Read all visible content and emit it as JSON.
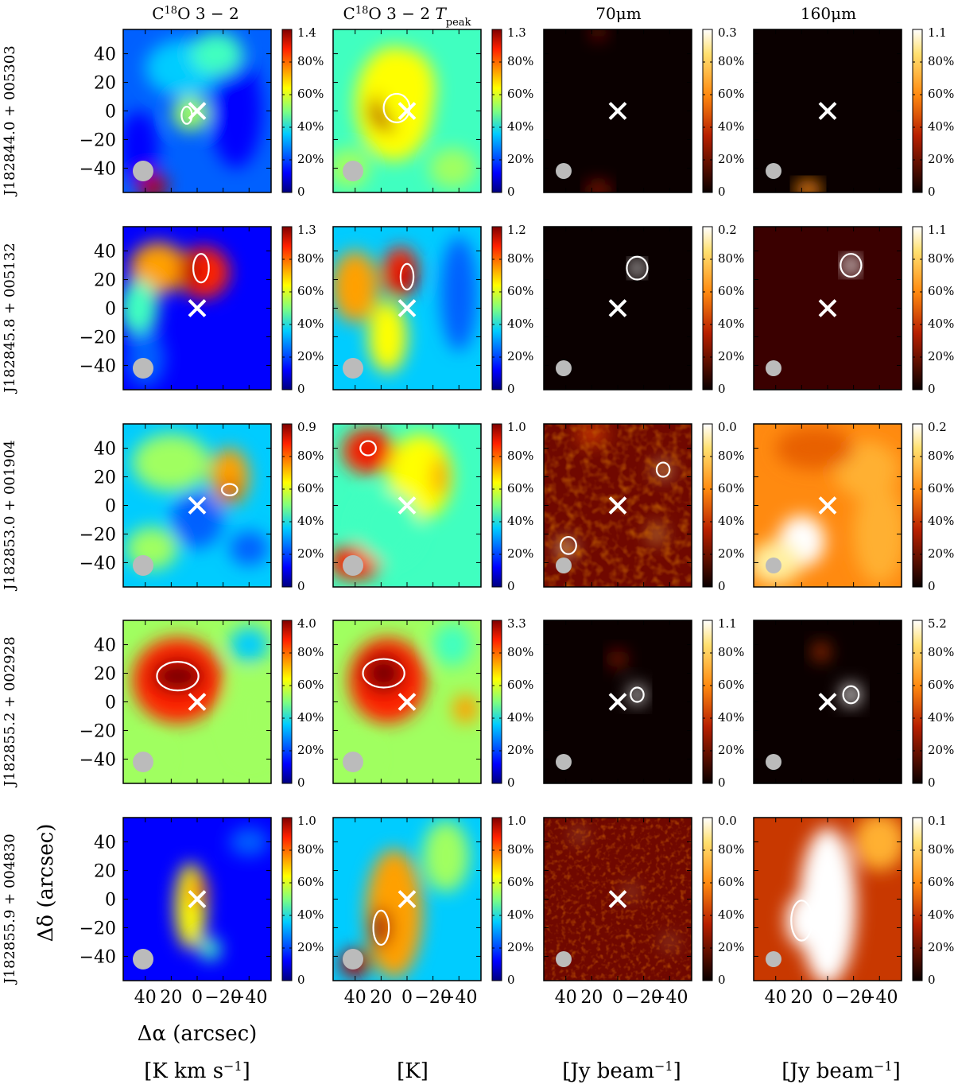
{
  "figure": {
    "column_headers": [
      {
        "base": "C",
        "sup": "18",
        "rest": "O 3 − 2",
        "sub_label": "",
        "sub": ""
      },
      {
        "base": "C",
        "sup": "18",
        "rest": "O 3 − 2 ",
        "sub_label": "T",
        "sub": "peak"
      },
      {
        "base": "70",
        "sup": "",
        "rest": "μm",
        "sub_label": "",
        "sub": ""
      },
      {
        "base": "160",
        "sup": "",
        "rest": "μm",
        "sub_label": "",
        "sub": ""
      }
    ],
    "row_labels": [
      "J182844.0 + 005303",
      "J182845.8 + 005132",
      "J182853.0 + 001904",
      "J182855.2 + 002928",
      "J182855.9 + 004830"
    ],
    "unit_labels": [
      {
        "pre": "[K km s",
        "sup": "−1",
        "post": "]"
      },
      {
        "pre": "[K",
        "sup": "",
        "post": "]"
      },
      {
        "pre": "[Jy beam",
        "sup": "−1",
        "post": "]"
      },
      {
        "pre": "[Jy beam",
        "sup": "−1",
        "post": "]"
      }
    ],
    "x_axis_label": "Δα (arcsec)",
    "y_axis_label": "Δδ (arcsec)",
    "x_tick_labels": [
      "40",
      "20",
      "0",
      "−20",
      "−40"
    ],
    "y_tick_labels": [
      "40",
      "20",
      "0",
      "−20",
      "−40"
    ],
    "colorbar_percent_ticks": [
      "80%",
      "60%",
      "40%",
      "20%"
    ],
    "colorbar_zero": "0",
    "colorbar_max": [
      [
        "1.4",
        "1.3",
        "0.3",
        "1.1"
      ],
      [
        "1.3",
        "1.2",
        "0.2",
        "1.1"
      ],
      [
        "0.9",
        "1.0",
        "0.0",
        "0.2"
      ],
      [
        "4.0",
        "3.3",
        "1.1",
        "5.2"
      ],
      [
        "1.0",
        "1.0",
        "0.0",
        "0.1"
      ]
    ],
    "colormaps": [
      "jet",
      "jet",
      "hot",
      "hot"
    ],
    "colors": {
      "marker": "#ffffff",
      "contour": "#ffffff",
      "beam": "#bbbbbb"
    }
  }
}
